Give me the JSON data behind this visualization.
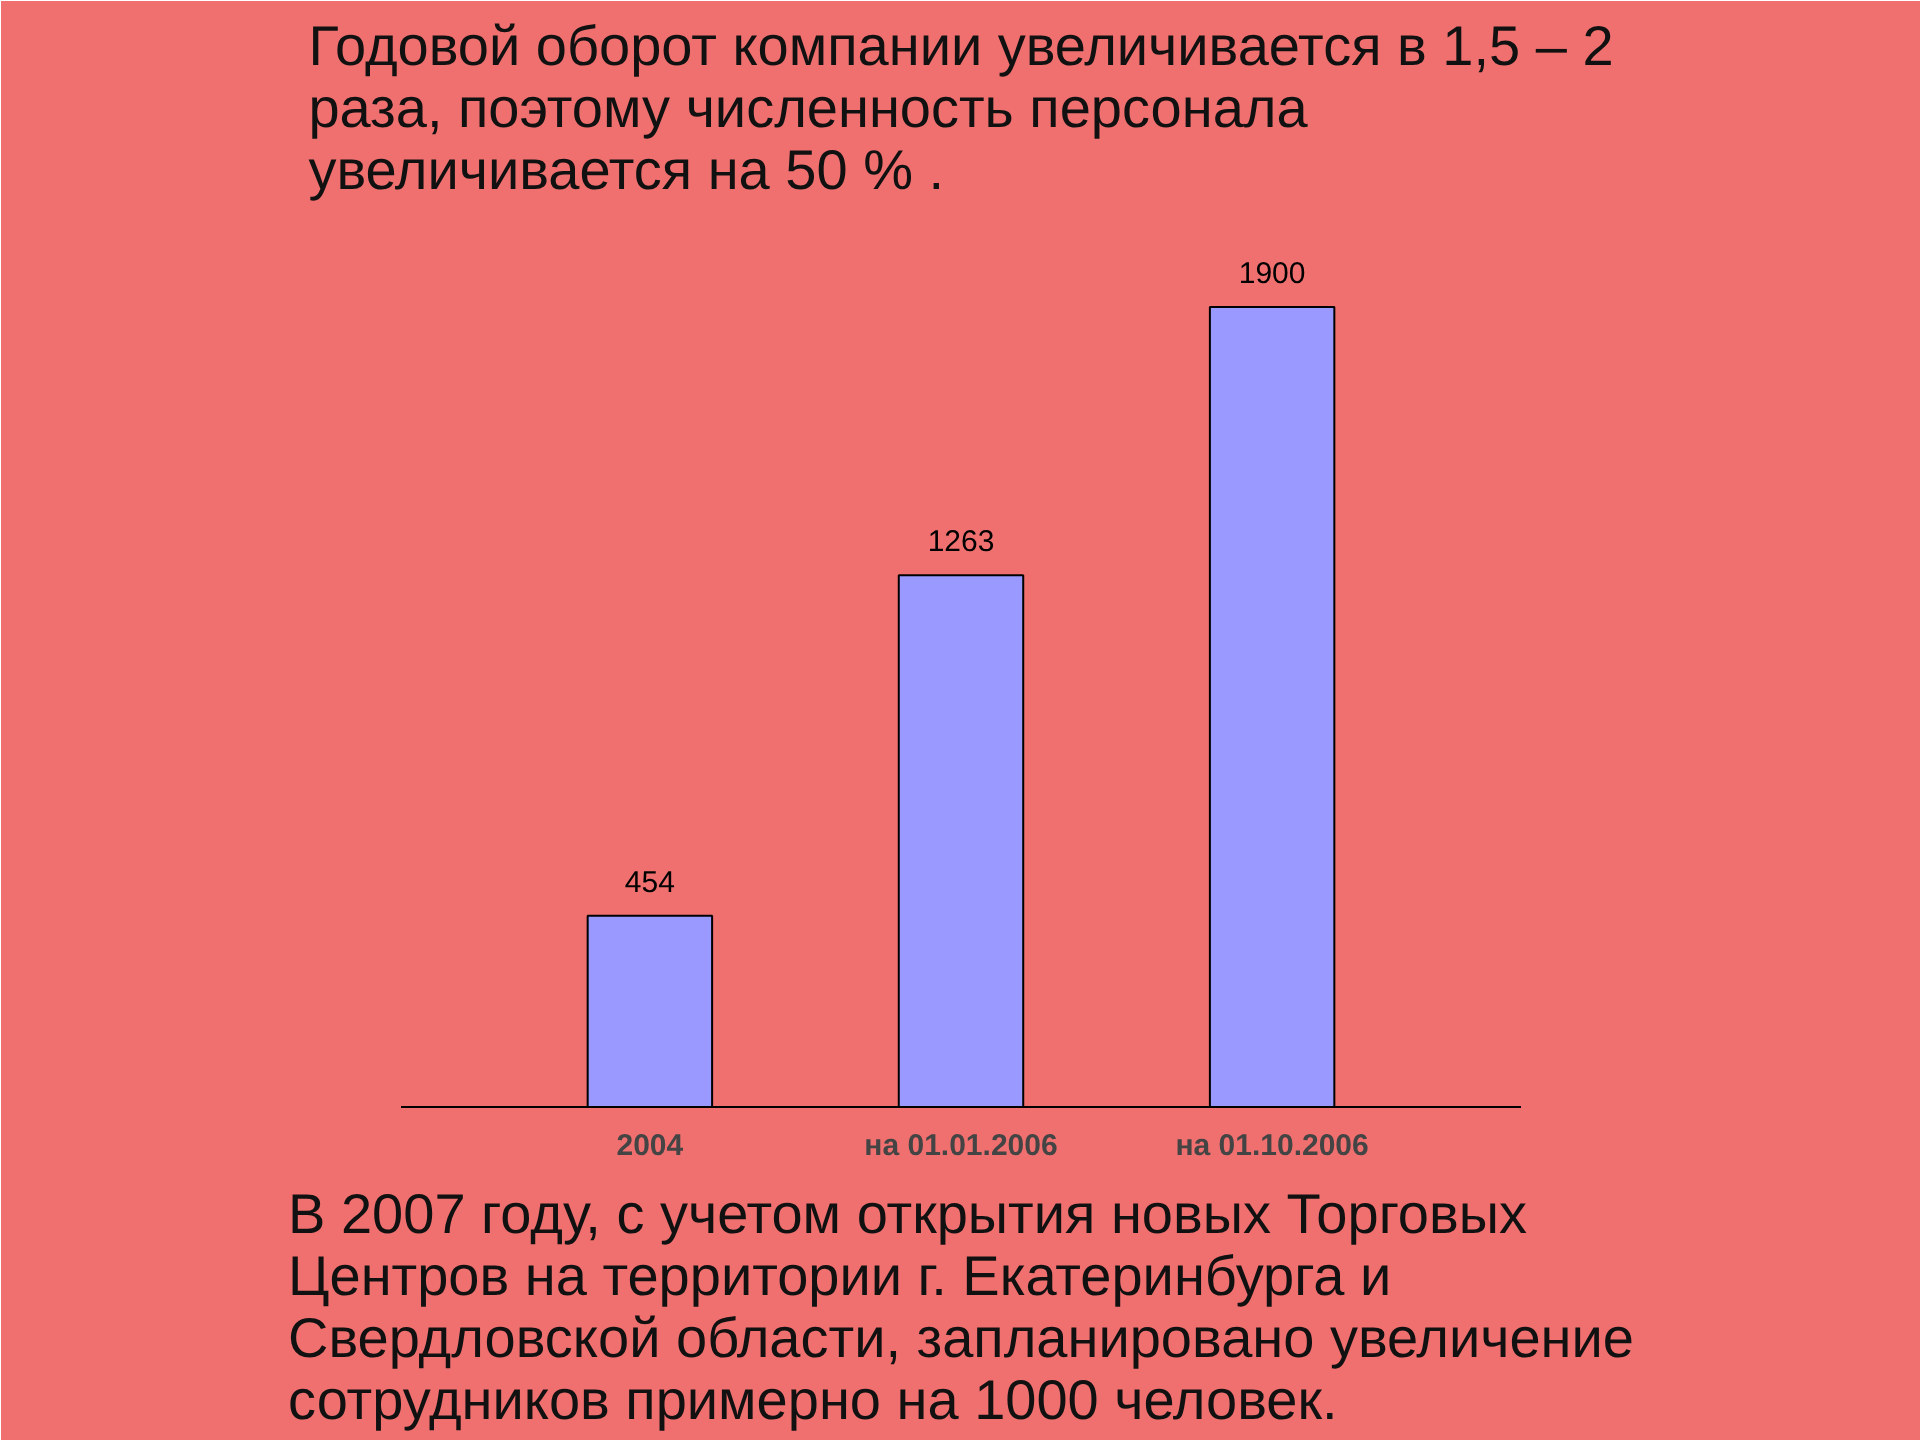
{
  "chart_data": {
    "type": "bar",
    "title": "Годовой оборот компании увеличивается в 1,5 – 2 раза, поэтому численность персонала увеличивается  на  50 % .",
    "categories": [
      "2004",
      "на 01.01.2006",
      "на 01.10.2006"
    ],
    "values": [
      454,
      1263,
      1900
    ],
    "color": "#9999ff",
    "data_labels": true,
    "grid": false,
    "annotations": [
      "В 2007 году,  с учетом  открытия новых Торговых Центров на территории г. Екатеринбурга и Свердловской области, запланировано увеличение сотрудников примерно на 1000 человек."
    ]
  }
}
